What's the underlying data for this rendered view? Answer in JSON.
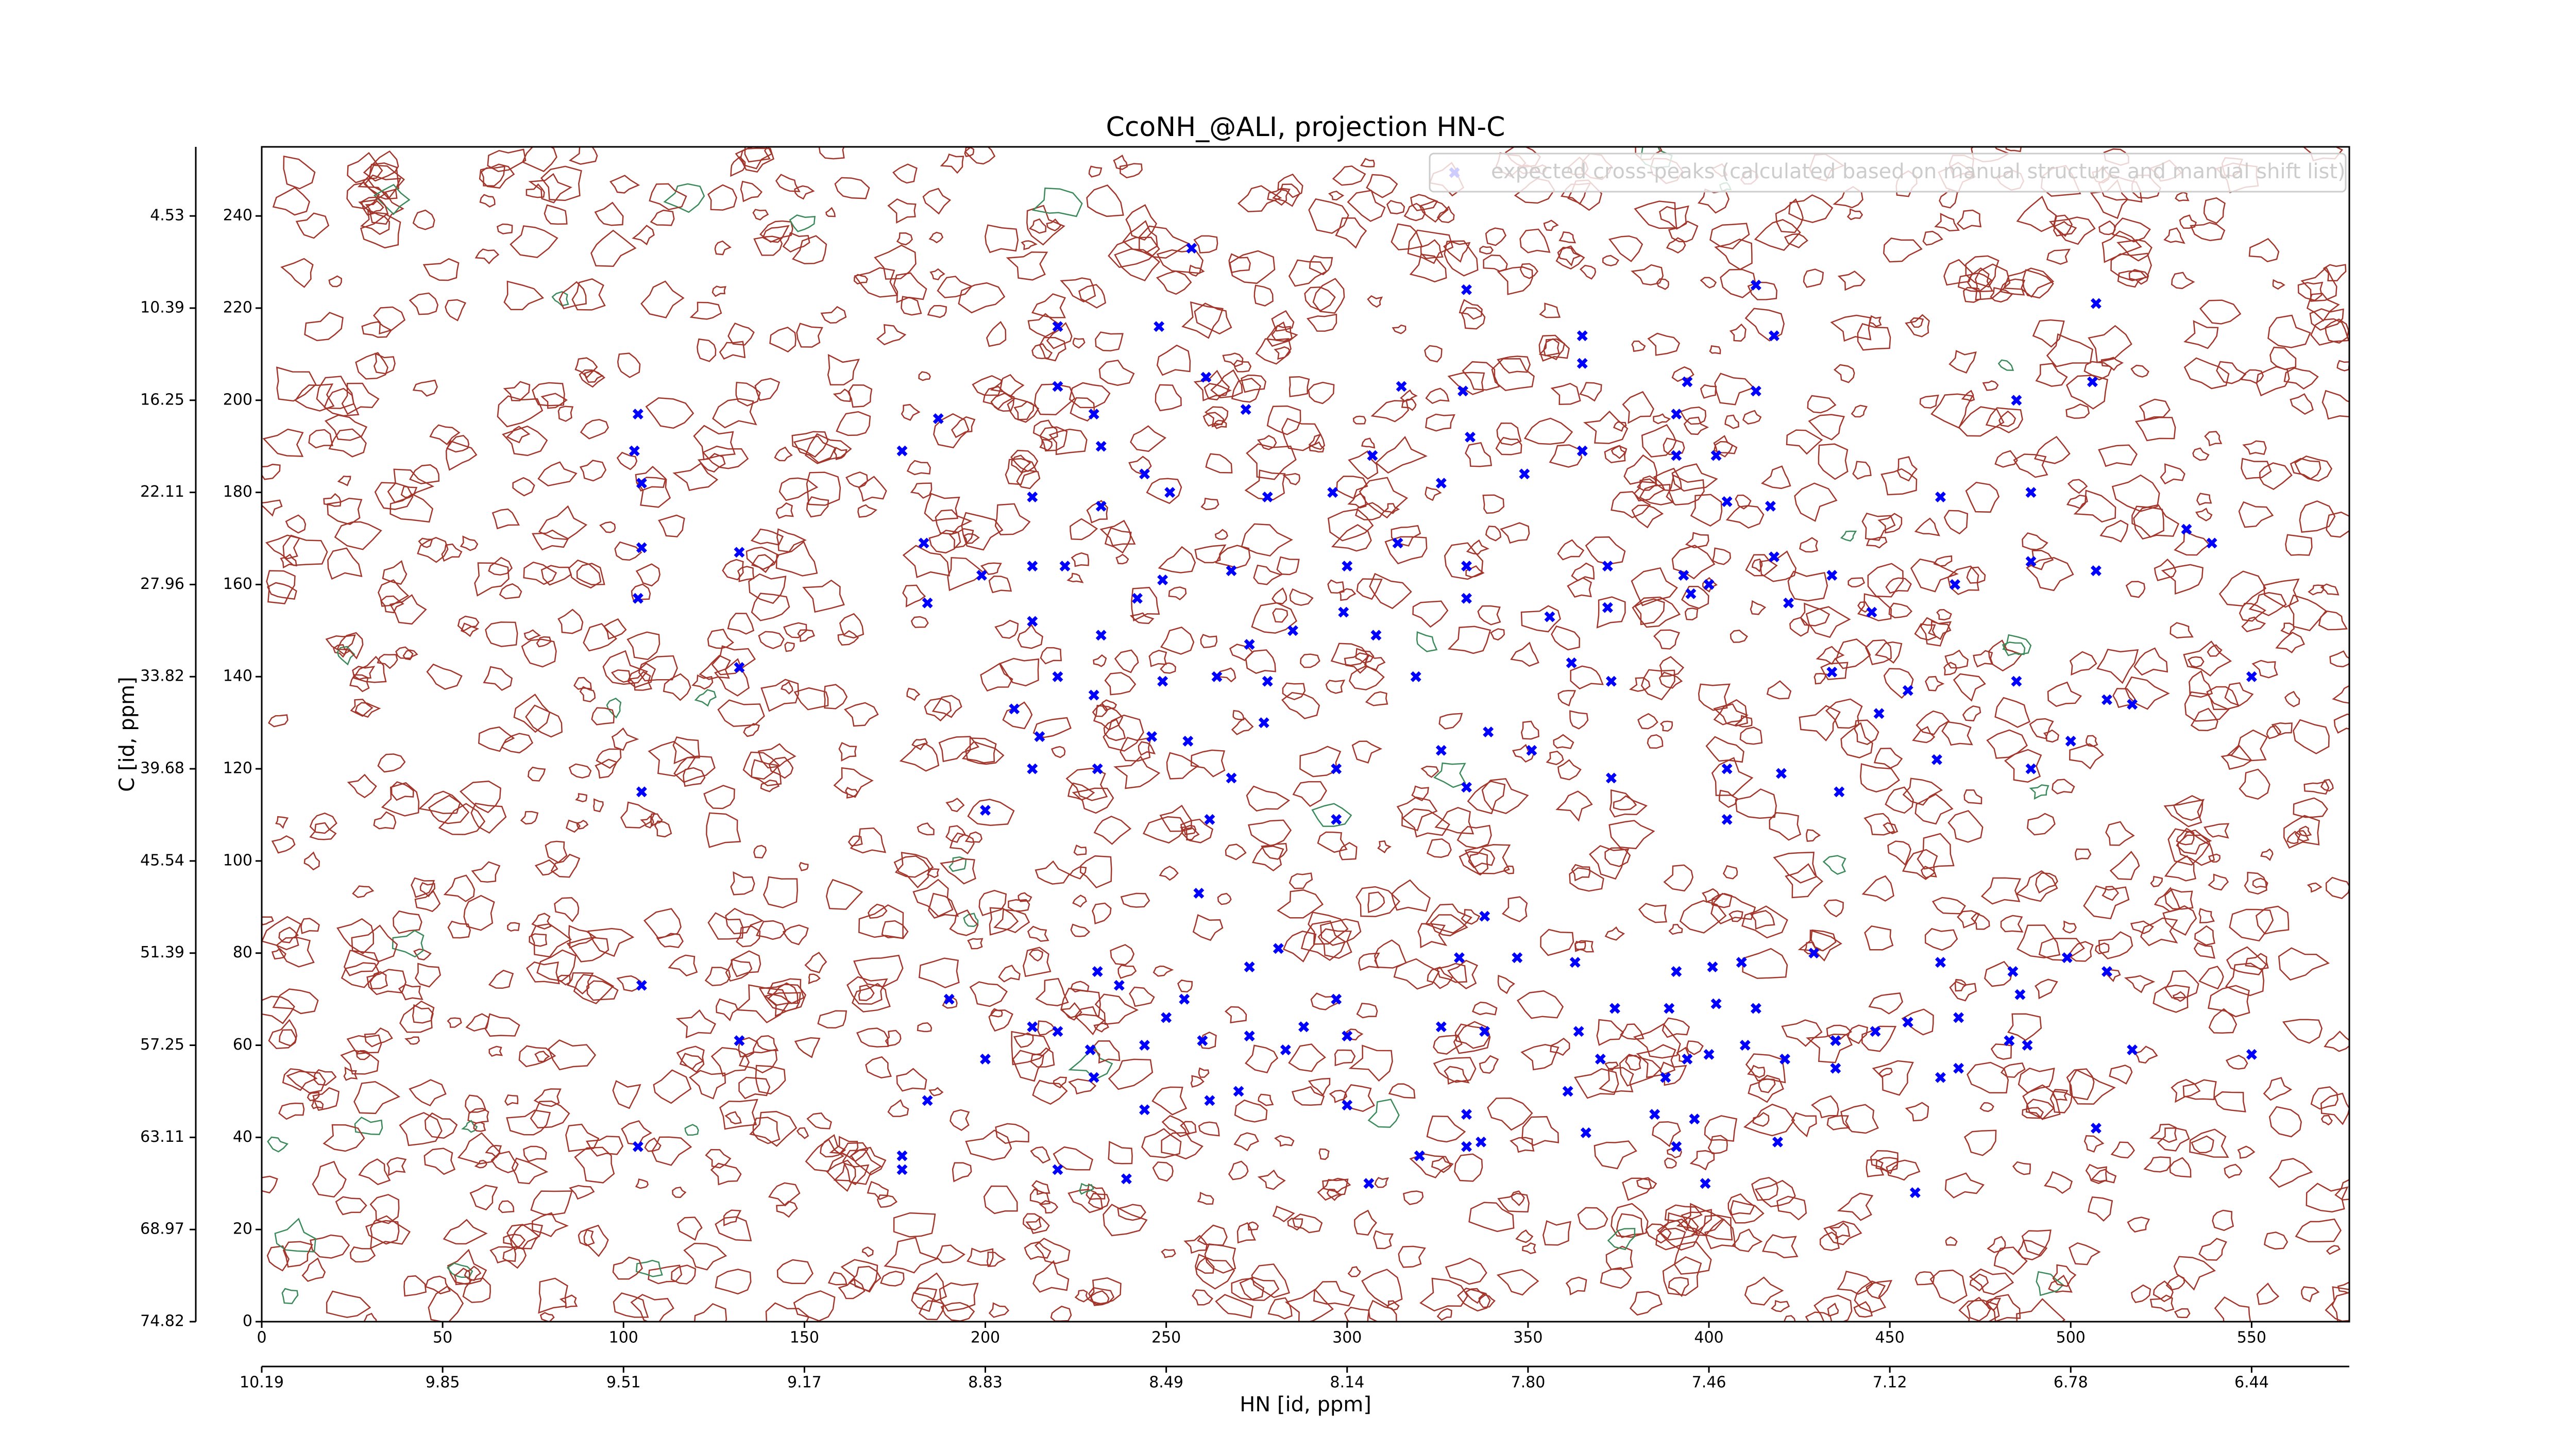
{
  "chart_data": {
    "type": "scatter",
    "title": "CcoNH_@ALI, projection HN-C",
    "xlabel": "HN [id, ppm]",
    "ylabel": "C [id, ppm]",
    "xlim": [
      0,
      577
    ],
    "ylim": [
      0,
      255
    ],
    "xticks": [
      0,
      50,
      100,
      150,
      200,
      250,
      300,
      350,
      400,
      450,
      500,
      550
    ],
    "yticks": [
      0,
      20,
      40,
      60,
      80,
      100,
      120,
      140,
      160,
      180,
      200,
      220,
      240
    ],
    "x2ticks": [
      {
        "value": 0,
        "label": "10.19"
      },
      {
        "value": 50,
        "label": "9.85"
      },
      {
        "value": 100,
        "label": "9.51"
      },
      {
        "value": 150,
        "label": "9.17"
      },
      {
        "value": 200,
        "label": "8.83"
      },
      {
        "value": 250,
        "label": "8.49"
      },
      {
        "value": 300,
        "label": "8.14"
      },
      {
        "value": 350,
        "label": "7.80"
      },
      {
        "value": 400,
        "label": "7.46"
      },
      {
        "value": 450,
        "label": "7.12"
      },
      {
        "value": 500,
        "label": "6.78"
      },
      {
        "value": 550,
        "label": "6.44"
      }
    ],
    "y2ticks": [
      {
        "value": 0,
        "label": "74.82"
      },
      {
        "value": 20,
        "label": "68.97"
      },
      {
        "value": 40,
        "label": "63.11"
      },
      {
        "value": 60,
        "label": "57.25"
      },
      {
        "value": 80,
        "label": "51.39"
      },
      {
        "value": 100,
        "label": "45.54"
      },
      {
        "value": 120,
        "label": "39.68"
      },
      {
        "value": 140,
        "label": "33.82"
      },
      {
        "value": 160,
        "label": "27.96"
      },
      {
        "value": 180,
        "label": "22.11"
      },
      {
        "value": 200,
        "label": "16.25"
      },
      {
        "value": 220,
        "label": "10.39"
      },
      {
        "value": 240,
        "label": "4.53"
      }
    ],
    "legend": "upper right",
    "series": [
      {
        "name": "expected cross-peaks (calculated based on manual structure and manual shift list)",
        "color": "#0000ff",
        "x": [
          257,
          220,
          248,
          220,
          261,
          333,
          365,
          365,
          413,
          418,
          507,
          394,
          413,
          485,
          506,
          104,
          103,
          105,
          177,
          187,
          232,
          230,
          272,
          315,
          332,
          334,
          326,
          307,
          213,
          232,
          251,
          244,
          278,
          296,
          349,
          365,
          391,
          391,
          402,
          405,
          417,
          464,
          489,
          532,
          539,
          105,
          132,
          183,
          213,
          222,
          242,
          249,
          268,
          300,
          314,
          333,
          333,
          372,
          393,
          395,
          434,
          445,
          468,
          489,
          507,
          104,
          184,
          199,
          213,
          232,
          273,
          285,
          299,
          308,
          356,
          372,
          422,
          400,
          418,
          132,
          220,
          230,
          249,
          264,
          278,
          319,
          362,
          373,
          434,
          455,
          485,
          550,
          447,
          510,
          517,
          208,
          215,
          213,
          231,
          246,
          256,
          268,
          277,
          297,
          326,
          339,
          351,
          373,
          405,
          420,
          436,
          463,
          489,
          500,
          105,
          200,
          262,
          297,
          333,
          405,
          259,
          338,
          231,
          281,
          273,
          331,
          347,
          363,
          391,
          401,
          409,
          429,
          464,
          484,
          499,
          510,
          486,
          105,
          190,
          237,
          250,
          255,
          288,
          297,
          326,
          338,
          364,
          374,
          389,
          402,
          413,
          446,
          455,
          469,
          132,
          200,
          213,
          220,
          229,
          244,
          260,
          273,
          283,
          300,
          361,
          370,
          388,
          394,
          400,
          410,
          421,
          435,
          483,
          488,
          517,
          550,
          184,
          230,
          244,
          262,
          270,
          300,
          333,
          333,
          366,
          385,
          396,
          435,
          469,
          464,
          507,
          104,
          177,
          177,
          220,
          239,
          306,
          320,
          337,
          391,
          419,
          399,
          457
        ],
        "y": [
          233,
          216,
          216,
          203,
          205,
          224,
          214,
          208,
          225,
          214,
          221,
          204,
          202,
          200,
          204,
          197,
          189,
          182,
          189,
          196,
          190,
          197,
          198,
          203,
          202,
          192,
          182,
          188,
          179,
          177,
          180,
          184,
          179,
          180,
          184,
          189,
          197,
          188,
          188,
          178,
          177,
          179,
          180,
          172,
          169,
          168,
          167,
          169,
          164,
          164,
          157,
          161,
          163,
          164,
          169,
          164,
          157,
          164,
          162,
          158,
          162,
          154,
          160,
          165,
          163,
          157,
          156,
          162,
          152,
          149,
          147,
          150,
          154,
          149,
          153,
          155,
          156,
          160,
          166,
          142,
          140,
          136,
          139,
          140,
          139,
          140,
          143,
          139,
          141,
          137,
          139,
          140,
          132,
          135,
          134,
          133,
          127,
          120,
          120,
          127,
          126,
          118,
          130,
          120,
          124,
          128,
          124,
          118,
          120,
          119,
          115,
          122,
          120,
          126,
          115,
          111,
          109,
          109,
          116,
          109,
          93,
          88,
          76,
          81,
          77,
          79,
          79,
          78,
          76,
          77,
          78,
          80,
          78,
          76,
          79,
          76,
          71,
          73,
          70,
          73,
          66,
          70,
          64,
          70,
          64,
          63,
          63,
          68,
          68,
          69,
          68,
          63,
          65,
          66,
          61,
          57,
          64,
          63,
          59,
          60,
          61,
          62,
          59,
          62,
          50,
          57,
          53,
          57,
          58,
          60,
          57,
          61,
          61,
          60,
          59,
          58,
          48,
          53,
          46,
          48,
          50,
          47,
          45,
          38,
          41,
          45,
          44,
          55,
          55,
          53,
          42,
          38,
          36,
          33,
          33,
          31,
          30,
          36,
          39,
          38,
          39,
          30,
          28
        ]
      }
    ]
  }
}
